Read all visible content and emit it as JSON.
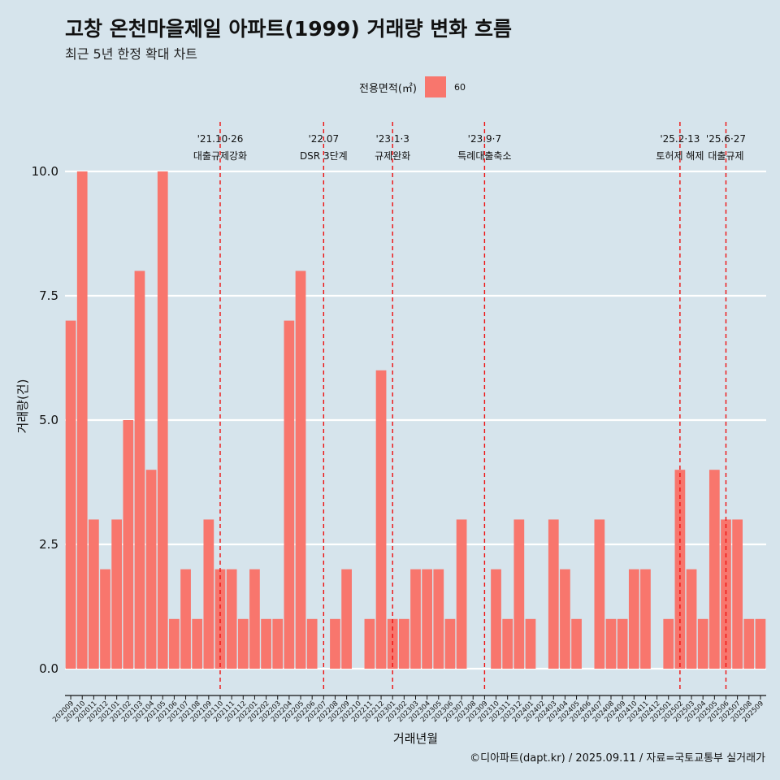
{
  "title": "고창 온천마을제일 아파트(1999) 거래량 변화 흐름",
  "subtitle": "최근 5년 한정 확대 차트",
  "legend": {
    "title": "전용면적(㎡)",
    "label": "60",
    "color": "#f8766d"
  },
  "caption": "©디아파트(dapt.kr) / 2025.09.11 / 자료=국토교통부 실거래가",
  "chart_data": {
    "type": "bar",
    "xlabel": "거래년월",
    "ylabel": "거래량(건)",
    "ylim": [
      0,
      10
    ],
    "yticks": [
      "0.0",
      "2.5",
      "5.0",
      "7.5",
      "10.0"
    ],
    "ytick_values": [
      0,
      2.5,
      5,
      7.5,
      10
    ],
    "grid": true,
    "legend_position": "top",
    "categories": [
      "202009",
      "202010",
      "202011",
      "202012",
      "202101",
      "202102",
      "202103",
      "202104",
      "202105",
      "202106",
      "202107",
      "202108",
      "202109",
      "202110",
      "202111",
      "202112",
      "202201",
      "202202",
      "202203",
      "202204",
      "202205",
      "202206",
      "202207",
      "202208",
      "202209",
      "202210",
      "202211",
      "202212",
      "202301",
      "202302",
      "202303",
      "202304",
      "202305",
      "202306",
      "202307",
      "202308",
      "202309",
      "202310",
      "202311",
      "202312",
      "202401",
      "202402",
      "202403",
      "202404",
      "202405",
      "202406",
      "202407",
      "202408",
      "202409",
      "202410",
      "202411",
      "202412",
      "202501",
      "202502",
      "202503",
      "202504",
      "202505",
      "202506",
      "202507",
      "202508",
      "202509"
    ],
    "series": [
      {
        "name": "60",
        "color": "#f8766d",
        "values": [
          7,
          10,
          3,
          2,
          3,
          5,
          8,
          4,
          10,
          1,
          2,
          1,
          3,
          2,
          2,
          1,
          2,
          1,
          1,
          7,
          8,
          1,
          0,
          1,
          2,
          0,
          1,
          6,
          1,
          1,
          2,
          2,
          2,
          1,
          3,
          0,
          0,
          2,
          1,
          3,
          1,
          0,
          3,
          2,
          1,
          0,
          3,
          1,
          1,
          2,
          2,
          0,
          1,
          4,
          2,
          1,
          4,
          3,
          3,
          1,
          1
        ]
      }
    ],
    "events": [
      {
        "category": "202110",
        "date": "'21.10·26",
        "label": "대출규제강화"
      },
      {
        "category": "202207",
        "date": "'22.07",
        "label": "DSR 3단계"
      },
      {
        "category": "202301",
        "date": "'23.1·3",
        "label": "규제완화"
      },
      {
        "category": "202309",
        "date": "'23.9·7",
        "label": "특례대출축소"
      },
      {
        "category": "202502",
        "date": "'25.2·13",
        "label": "토허제 해제"
      },
      {
        "category": "202506",
        "date": "'25.6·27",
        "label": "대출규제"
      }
    ]
  }
}
